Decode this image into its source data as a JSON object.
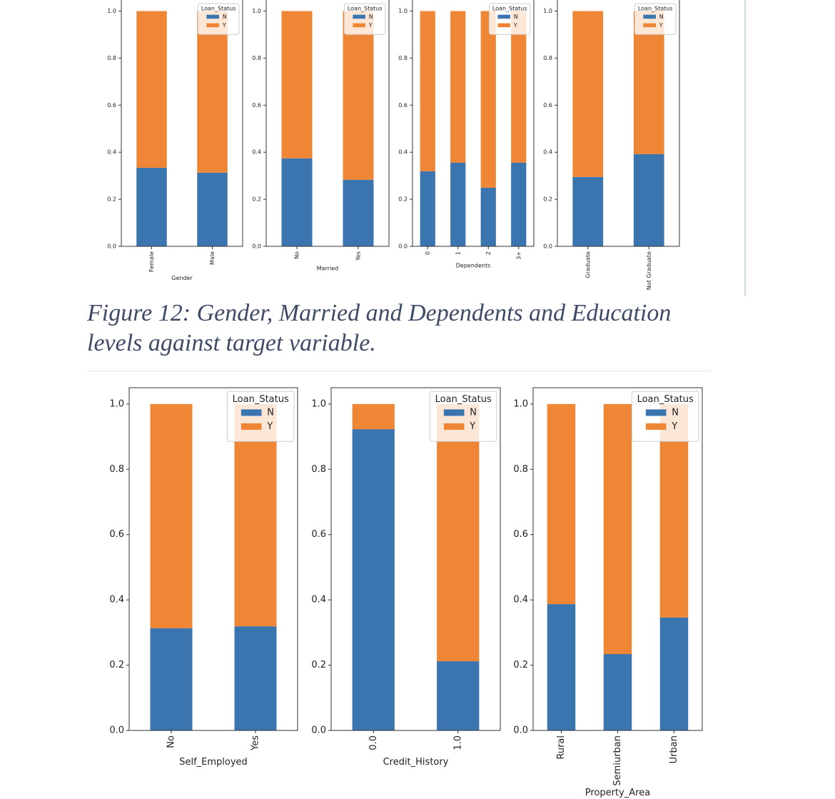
{
  "caption": "Figure 12: Gender, Married and Dependents and Education levels against target variable.",
  "chart_data": [
    {
      "type": "stacked_bar",
      "categories": [
        "Female",
        "Male"
      ],
      "xlabel": "Gender",
      "legend_title": "Loan_Status",
      "legend": "upper right",
      "series": [
        {
          "name": "N",
          "color": "#3a75b0",
          "values": [
            0.334,
            0.313
          ]
        },
        {
          "name": "Y",
          "color": "#ef8636",
          "values": [
            0.666,
            0.687
          ]
        }
      ],
      "ylim": [
        0,
        1.05
      ],
      "yticks": [
        {
          "value": 0,
          "label": "0.0"
        },
        0.2,
        0.4,
        0.6,
        0.8,
        {
          "value": 1,
          "label": "1.0"
        }
      ]
    },
    {
      "type": "stacked_bar",
      "categories": [
        "No",
        "Yes"
      ],
      "xlabel": "Married",
      "legend_title": "Loan_Status",
      "legend": "upper right",
      "series": [
        {
          "name": "N",
          "color": "#3a75b0",
          "values": [
            0.374,
            0.283
          ]
        },
        {
          "name": "Y",
          "color": "#ef8636",
          "values": [
            0.626,
            0.717
          ]
        }
      ],
      "ylim": [
        0,
        1.05
      ],
      "yticks": [
        {
          "value": 0,
          "label": "0.0"
        },
        0.2,
        0.4,
        0.6,
        0.8,
        {
          "value": 1,
          "label": "1.0"
        }
      ]
    },
    {
      "type": "stacked_bar",
      "categories": [
        "0",
        "1",
        "2",
        "3+"
      ],
      "xlabel": "Dependents",
      "legend_title": "Loan_Status",
      "legend": "upper right",
      "series": [
        {
          "name": "N",
          "color": "#3a75b0",
          "values": [
            0.319,
            0.356,
            0.249,
            0.356
          ]
        },
        {
          "name": "Y",
          "color": "#ef8636",
          "values": [
            0.681,
            0.644,
            0.751,
            0.644
          ]
        }
      ],
      "ylim": [
        0,
        1.05
      ],
      "yticks": [
        {
          "value": 0,
          "label": "0.0"
        },
        0.2,
        0.4,
        0.6,
        0.8,
        {
          "value": 1,
          "label": "1.0"
        }
      ]
    },
    {
      "type": "stacked_bar",
      "categories": [
        "Graduate",
        "Not Graduate"
      ],
      "legend_title": "Loan_Status",
      "legend": "upper right",
      "series": [
        {
          "name": "N",
          "color": "#3a75b0",
          "values": [
            0.295,
            0.392
          ]
        },
        {
          "name": "Y",
          "color": "#ef8636",
          "values": [
            0.705,
            0.608
          ]
        }
      ],
      "ylim": [
        0,
        1.05
      ],
      "yticks": [
        {
          "value": 0,
          "label": "0.0"
        },
        0.2,
        0.4,
        0.6,
        0.8,
        {
          "value": 1,
          "label": "1.0"
        }
      ]
    },
    {
      "type": "stacked_bar",
      "categories": [
        "No",
        "Yes"
      ],
      "xlabel": "Self_Employed",
      "legend_title": "Loan_Status",
      "legend": "upper right",
      "series": [
        {
          "name": "N",
          "color": "#3a75b0",
          "values": [
            0.313,
            0.319
          ]
        },
        {
          "name": "Y",
          "color": "#ef8636",
          "values": [
            0.687,
            0.681
          ]
        }
      ],
      "ylim": [
        0,
        1.05
      ],
      "yticks": [
        {
          "value": 0,
          "label": "0.0"
        },
        0.2,
        0.4,
        0.6,
        0.8,
        {
          "value": 1,
          "label": "1.0"
        }
      ]
    },
    {
      "type": "stacked_bar",
      "categories": [
        "0.0",
        "1.0"
      ],
      "xlabel": "Credit_History",
      "legend_title": "Loan_Status",
      "legend": "upper right",
      "series": [
        {
          "name": "N",
          "color": "#3a75b0",
          "values": [
            0.923,
            0.212
          ]
        },
        {
          "name": "Y",
          "color": "#ef8636",
          "values": [
            0.077,
            0.788
          ]
        }
      ],
      "ylim": [
        0,
        1.05
      ],
      "yticks": [
        {
          "value": 0,
          "label": "0.0"
        },
        0.2,
        0.4,
        0.6,
        0.8,
        {
          "value": 1,
          "label": "1.0"
        }
      ]
    },
    {
      "type": "stacked_bar",
      "categories": [
        "Rural",
        "Semiurban",
        "Urban"
      ],
      "xlabel": "Property_Area",
      "legend_title": "Loan_Status",
      "legend": "upper right",
      "series": [
        {
          "name": "N",
          "color": "#3a75b0",
          "values": [
            0.387,
            0.234,
            0.346
          ]
        },
        {
          "name": "Y",
          "color": "#ef8636",
          "values": [
            0.613,
            0.766,
            0.654
          ]
        }
      ],
      "ylim": [
        0,
        1.05
      ],
      "yticks": [
        {
          "value": 0,
          "label": "0.0"
        },
        0.2,
        0.4,
        0.6,
        0.8,
        {
          "value": 1,
          "label": "1.0"
        }
      ]
    }
  ]
}
